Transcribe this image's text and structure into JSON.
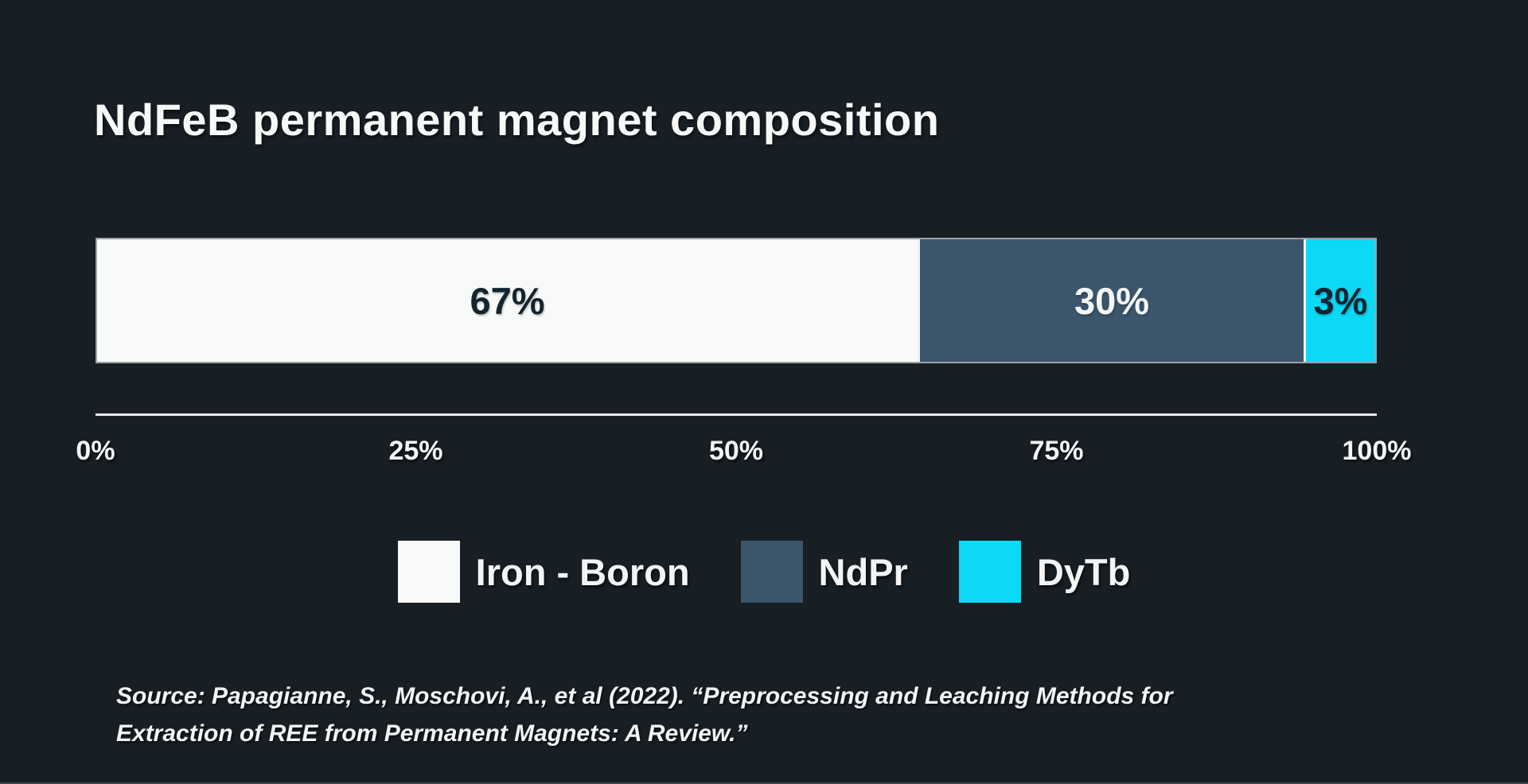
{
  "page": {
    "background_color": "#171e24",
    "text_color": "#f2f4f5"
  },
  "chart_data": {
    "type": "bar",
    "variant": "horizontal-stacked-single-bar",
    "title": "NdFeB permanent magnet composition",
    "categories": [
      "Iron - Boron",
      "NdPr",
      "DyTb"
    ],
    "values": [
      67,
      30,
      3
    ],
    "unit": "%",
    "series": [
      {
        "name": "Iron - Boron",
        "value": 67,
        "label": "67%",
        "color": "#f8f9f9",
        "label_color": "#13242f",
        "drawn_width_pct": 64.2
      },
      {
        "name": "NdPr",
        "value": 30,
        "label": "30%",
        "color": "#3b556b",
        "label_color": "#f3f6f7",
        "drawn_width_pct": 30.2
      },
      {
        "name": "DyTb",
        "value": 3,
        "label": "3%",
        "color": "#0bd9f6",
        "label_color": "#0e2431",
        "drawn_width_pct": 5.6
      }
    ],
    "xaxis": {
      "min": 0,
      "max": 100,
      "tick_values": [
        0,
        25,
        50,
        75,
        100
      ],
      "ticks": [
        "0%",
        "25%",
        "50%",
        "75%",
        "100%"
      ]
    },
    "grid": false,
    "legend": {
      "position": "bottom-center",
      "items": [
        {
          "label": "Iron - Boron",
          "color": "#f8f9f9"
        },
        {
          "label": "NdPr",
          "color": "#3b556b"
        },
        {
          "label": "DyTb",
          "color": "#0bd9f6"
        }
      ]
    }
  },
  "source": {
    "line1": "Source: Papagianne, S., Moschovi, A., et al (2022). “Preprocessing and Leaching Methods for",
    "line2": "Extraction of REE from Permanent Magnets: A Review.”"
  }
}
